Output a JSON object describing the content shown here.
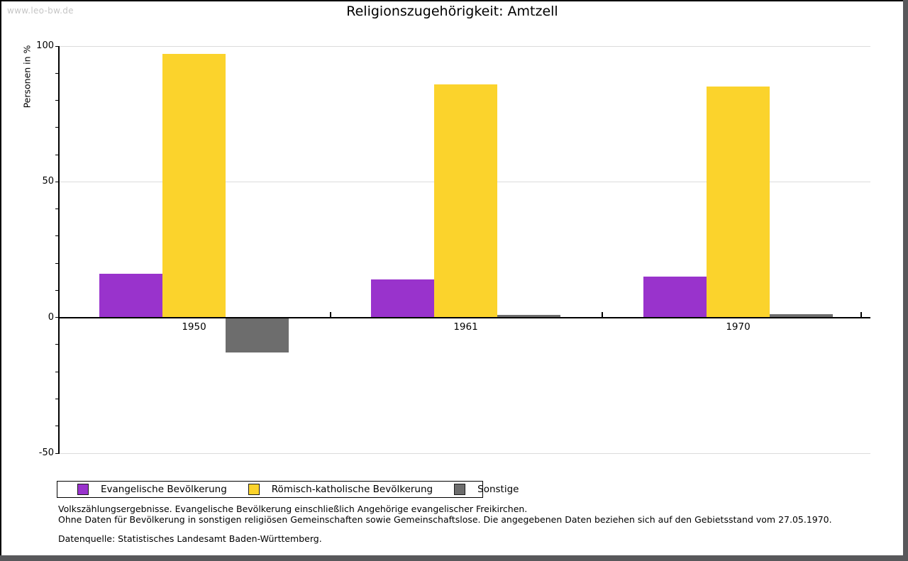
{
  "watermark": "www.leo-bw.de",
  "chart_data": {
    "type": "bar",
    "title": "Religionszugehörigkeit: Amtzell",
    "xlabel": "",
    "ylabel": "Personen in %",
    "categories": [
      "1950",
      "1961",
      "1970"
    ],
    "series": [
      {
        "name": "Evangelische Bevölkerung",
        "color": "#9933cc",
        "values": [
          16,
          14,
          15
        ]
      },
      {
        "name": "Römisch-katholische Bevölkerung",
        "color": "#fbd32c",
        "values": [
          97,
          86,
          85
        ]
      },
      {
        "name": "Sonstige",
        "color": "#6d6d6d",
        "values": [
          -12.7,
          0.9,
          1.2
        ]
      }
    ],
    "ylim": [
      -50,
      100
    ],
    "ytick_values": [
      100,
      50,
      0,
      -50
    ],
    "ytick_labels": [
      "100",
      "50",
      "0",
      "-50"
    ],
    "minor_tick_step": 10,
    "grid": true,
    "gridline_color": "#dcdcdc",
    "legend_position": "bottom-left"
  },
  "footnotes": {
    "line1": "Volkszählungsergebnisse. Evangelische Bevölkerung einschließlich Angehörige evangelischer Freikirchen.",
    "line2": "Ohne Daten für Bevölkerung in sonstigen religiösen Gemeinschaften sowie Gemeinschaftslose. Die angegebenen Daten beziehen sich auf den Gebietsstand vom 27.05.1970.",
    "source": "Datenquelle: Statistisches Landesamt Baden-Württemberg."
  }
}
